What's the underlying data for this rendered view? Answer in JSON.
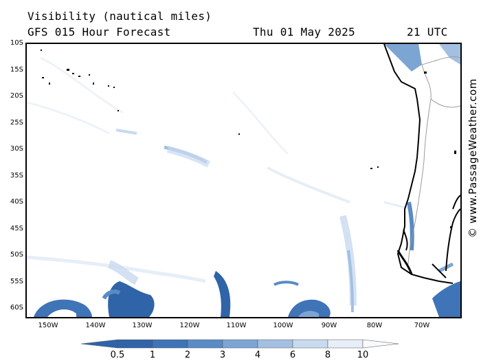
{
  "title": {
    "line1": "Visibility (nautical miles)",
    "line2": "GFS 015 Hour Forecast",
    "date": "Thu 01 May 2025",
    "time": "21 UTC"
  },
  "credit": "© www.PassageWeather.com",
  "lat_labels": [
    "10S",
    "15S",
    "20S",
    "25S",
    "30S",
    "35S",
    "40S",
    "45S",
    "50S",
    "55S",
    "60S"
  ],
  "lon_labels": [
    "150W",
    "140W",
    "130W",
    "120W",
    "110W",
    "100W",
    "90W",
    "80W",
    "70W"
  ],
  "legend": {
    "labels": [
      "0.5",
      "1",
      "2",
      "3",
      "4",
      "6",
      "8",
      "10"
    ],
    "colors": [
      "#2f64a8",
      "#3f74b7",
      "#5a8bc6",
      "#7ca5d4",
      "#a3c0e2",
      "#c8daef",
      "#e6eef8",
      "#f7f9fc"
    ]
  },
  "colors": {
    "land_outline": "#000000",
    "border_line": "#9a9a9a"
  }
}
